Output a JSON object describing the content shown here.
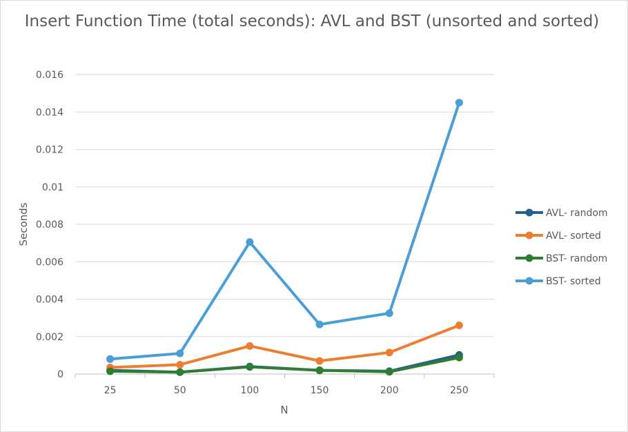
{
  "chart_data": {
    "type": "line",
    "title": "Insert Function Time (total seconds): AVL and BST (unsorted and sorted)",
    "xlabel": "N",
    "ylabel": "Seconds",
    "categories": [
      "25",
      "50",
      "100",
      "150",
      "200",
      "250"
    ],
    "ylim": [
      0,
      0.016
    ],
    "yticks": [
      0,
      0.002,
      0.004,
      0.006,
      0.008,
      0.01,
      0.012,
      0.014,
      0.016
    ],
    "ytick_labels": [
      "0",
      "0.002",
      "0.004",
      "0.006",
      "0.008",
      "0.01",
      "0.012",
      "0.014",
      "0.016"
    ],
    "grid": true,
    "legend_position": "right",
    "series": [
      {
        "name": "AVL- random",
        "color": "#255e91",
        "values": [
          0.0002,
          0.0001,
          0.0004,
          0.0002,
          0.00015,
          0.00102
        ]
      },
      {
        "name": "AVL- sorted",
        "color": "#ed7d31",
        "values": [
          0.00035,
          0.0005,
          0.0015,
          0.0007,
          0.00115,
          0.0026
        ]
      },
      {
        "name": "BST- random",
        "color": "#2e7d32",
        "values": [
          0.00015,
          0.0001,
          0.00038,
          0.0002,
          0.00012,
          0.00088
        ]
      },
      {
        "name": "BST- sorted",
        "color": "#4a9ed6",
        "values": [
          0.0008,
          0.0011,
          0.00705,
          0.00265,
          0.00325,
          0.0145
        ]
      }
    ]
  }
}
